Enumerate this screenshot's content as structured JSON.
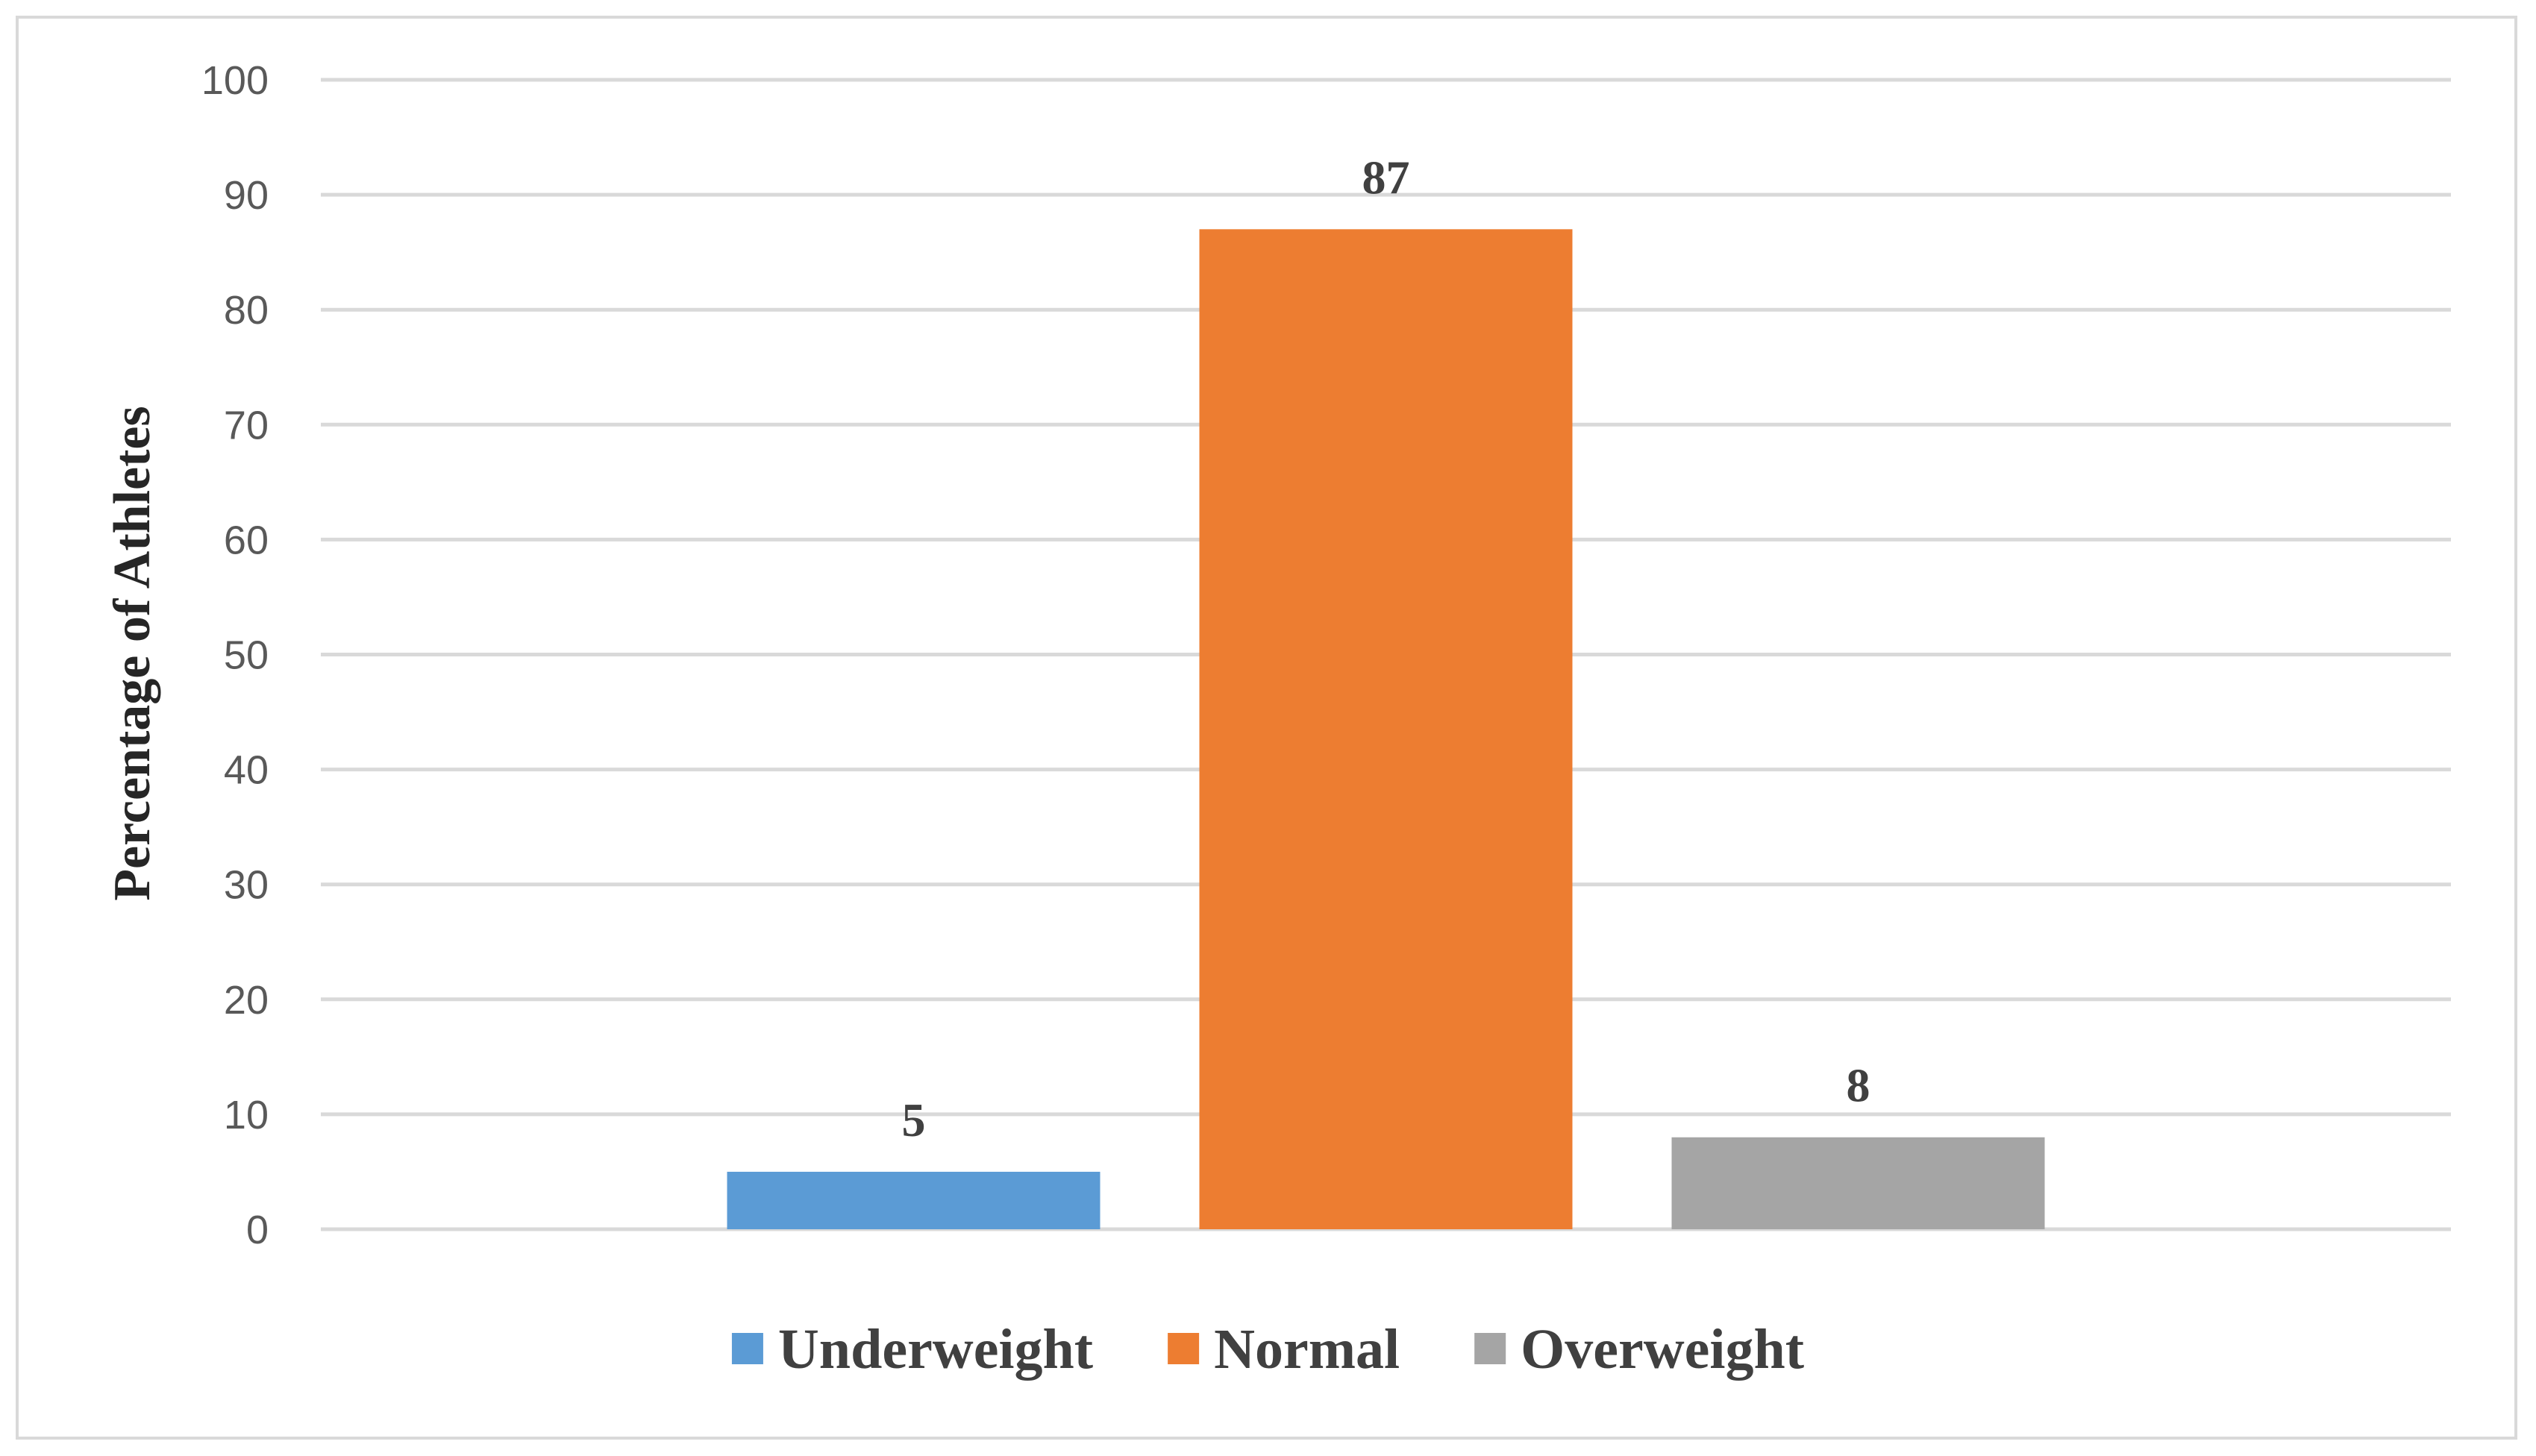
{
  "chart_data": {
    "type": "bar",
    "categories": [
      "Underweight",
      "Normal",
      "Overweight"
    ],
    "values": [
      5,
      87,
      8
    ],
    "data_labels": [
      "5",
      "87",
      "8"
    ],
    "title": "",
    "xlabel": "",
    "ylabel": "Percentage of Athletes",
    "ylim": [
      0,
      100
    ],
    "yticks": [
      0,
      10,
      20,
      30,
      40,
      50,
      60,
      70,
      80,
      90,
      100
    ],
    "grid": true,
    "legend_position": "bottom",
    "legend": [
      {
        "label": "Underweight",
        "color": "#5b9bd5"
      },
      {
        "label": "Normal",
        "color": "#ed7d31"
      },
      {
        "label": "Overweight",
        "color": "#a5a5a5"
      }
    ],
    "colors": [
      "#5b9bd5",
      "#ed7d31",
      "#a5a5a5"
    ]
  }
}
